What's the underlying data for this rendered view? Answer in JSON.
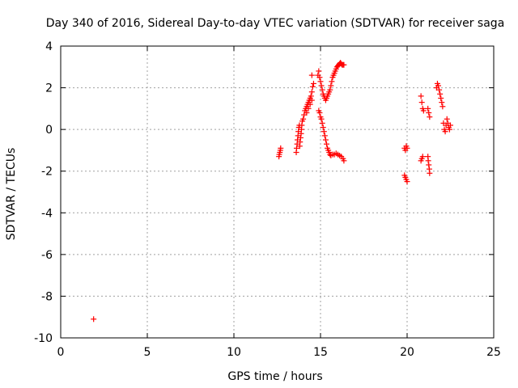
{
  "chart_data": {
    "type": "scatter",
    "title": "Day 340 of 2016, Sidereal Day-to-day VTEC variation (SDTVAR) for receiver saga",
    "xlabel": "GPS time / hours",
    "ylabel": "SDTVAR / TECUs",
    "xlim": [
      0,
      25
    ],
    "ylim": [
      -10,
      4
    ],
    "xticks": [
      0,
      5,
      10,
      15,
      20,
      25
    ],
    "yticks": [
      -10,
      -8,
      -6,
      -4,
      -2,
      0,
      2,
      4
    ],
    "grid": true,
    "marker": "plus",
    "color": "#ff0000",
    "series": [
      {
        "name": "SDTVAR",
        "points": [
          [
            1.9,
            -9.1
          ],
          [
            12.6,
            -1.3
          ],
          [
            12.62,
            -1.2
          ],
          [
            12.65,
            -1.1
          ],
          [
            12.68,
            -1.0
          ],
          [
            12.7,
            -0.9
          ],
          [
            13.6,
            -1.1
          ],
          [
            13.62,
            -0.9
          ],
          [
            13.65,
            -0.7
          ],
          [
            13.67,
            -0.5
          ],
          [
            13.7,
            -0.3
          ],
          [
            13.72,
            -0.1
          ],
          [
            13.75,
            0.1
          ],
          [
            13.78,
            0.2
          ],
          [
            13.8,
            -0.8
          ],
          [
            13.82,
            -0.6
          ],
          [
            13.85,
            -0.4
          ],
          [
            13.88,
            -0.2
          ],
          [
            13.9,
            0.0
          ],
          [
            13.92,
            0.2
          ],
          [
            13.95,
            0.4
          ],
          [
            14.0,
            0.5
          ],
          [
            14.05,
            0.7
          ],
          [
            14.1,
            0.9
          ],
          [
            14.15,
            1.0
          ],
          [
            14.2,
            1.1
          ],
          [
            14.25,
            1.2
          ],
          [
            14.3,
            1.3
          ],
          [
            14.35,
            1.4
          ],
          [
            14.4,
            1.5
          ],
          [
            14.45,
            1.6
          ],
          [
            14.5,
            1.8
          ],
          [
            14.55,
            2.05
          ],
          [
            14.2,
            0.8
          ],
          [
            14.3,
            1.0
          ],
          [
            14.4,
            1.2
          ],
          [
            14.5,
            1.4
          ],
          [
            14.5,
            2.6
          ],
          [
            14.6,
            2.2
          ],
          [
            14.85,
            2.6
          ],
          [
            14.9,
            2.8
          ],
          [
            14.95,
            2.5
          ],
          [
            15.0,
            2.3
          ],
          [
            15.05,
            2.1
          ],
          [
            15.1,
            1.9
          ],
          [
            15.15,
            1.7
          ],
          [
            15.2,
            1.6
          ],
          [
            15.25,
            1.5
          ],
          [
            15.3,
            1.4
          ],
          [
            15.35,
            1.5
          ],
          [
            15.4,
            1.6
          ],
          [
            15.45,
            1.7
          ],
          [
            15.5,
            1.8
          ],
          [
            15.55,
            1.9
          ],
          [
            15.6,
            2.1
          ],
          [
            15.65,
            2.3
          ],
          [
            15.7,
            2.5
          ],
          [
            15.75,
            2.6
          ],
          [
            15.8,
            2.7
          ],
          [
            15.85,
            2.8
          ],
          [
            15.9,
            2.9
          ],
          [
            15.95,
            3.0
          ],
          [
            16.0,
            3.05
          ],
          [
            16.05,
            3.1
          ],
          [
            16.1,
            3.15
          ],
          [
            16.15,
            3.2
          ],
          [
            16.2,
            3.15
          ],
          [
            16.25,
            3.1
          ],
          [
            16.3,
            3.1
          ],
          [
            16.35,
            3.1
          ],
          [
            14.9,
            0.9
          ],
          [
            14.95,
            0.8
          ],
          [
            15.0,
            0.6
          ],
          [
            15.05,
            0.5
          ],
          [
            15.1,
            0.3
          ],
          [
            15.15,
            0.1
          ],
          [
            15.2,
            -0.1
          ],
          [
            15.25,
            -0.3
          ],
          [
            15.3,
            -0.5
          ],
          [
            15.35,
            -0.7
          ],
          [
            15.4,
            -0.9
          ],
          [
            15.45,
            -1.0
          ],
          [
            15.5,
            -1.1
          ],
          [
            15.55,
            -1.2
          ],
          [
            15.6,
            -1.25
          ],
          [
            15.7,
            -1.2
          ],
          [
            15.8,
            -1.2
          ],
          [
            15.9,
            -1.15
          ],
          [
            16.0,
            -1.2
          ],
          [
            16.1,
            -1.25
          ],
          [
            16.2,
            -1.3
          ],
          [
            16.3,
            -1.4
          ],
          [
            16.35,
            -1.5
          ],
          [
            19.85,
            -0.9
          ],
          [
            19.9,
            -1.0
          ],
          [
            19.95,
            -0.8
          ],
          [
            20.0,
            -0.9
          ],
          [
            19.85,
            -2.2
          ],
          [
            19.9,
            -2.3
          ],
          [
            19.95,
            -2.4
          ],
          [
            20.0,
            -2.5
          ],
          [
            20.8,
            -1.5
          ],
          [
            20.85,
            -1.4
          ],
          [
            20.9,
            -1.3
          ],
          [
            20.8,
            1.6
          ],
          [
            20.85,
            1.3
          ],
          [
            20.9,
            1.0
          ],
          [
            20.95,
            0.9
          ],
          [
            21.2,
            1.0
          ],
          [
            21.25,
            0.8
          ],
          [
            21.3,
            0.6
          ],
          [
            21.2,
            -1.3
          ],
          [
            21.22,
            -1.5
          ],
          [
            21.25,
            -1.7
          ],
          [
            21.28,
            -1.9
          ],
          [
            21.3,
            -2.1
          ],
          [
            21.7,
            2.0
          ],
          [
            21.75,
            2.2
          ],
          [
            21.8,
            2.1
          ],
          [
            21.85,
            1.9
          ],
          [
            21.9,
            1.7
          ],
          [
            21.95,
            1.5
          ],
          [
            22.0,
            1.3
          ],
          [
            22.05,
            1.1
          ],
          [
            22.1,
            0.3
          ],
          [
            22.15,
            0.0
          ],
          [
            22.2,
            -0.1
          ],
          [
            22.25,
            0.2
          ],
          [
            22.3,
            0.5
          ],
          [
            22.35,
            0.3
          ],
          [
            22.4,
            0.1
          ],
          [
            22.45,
            0.0
          ],
          [
            22.5,
            0.2
          ]
        ]
      }
    ]
  }
}
